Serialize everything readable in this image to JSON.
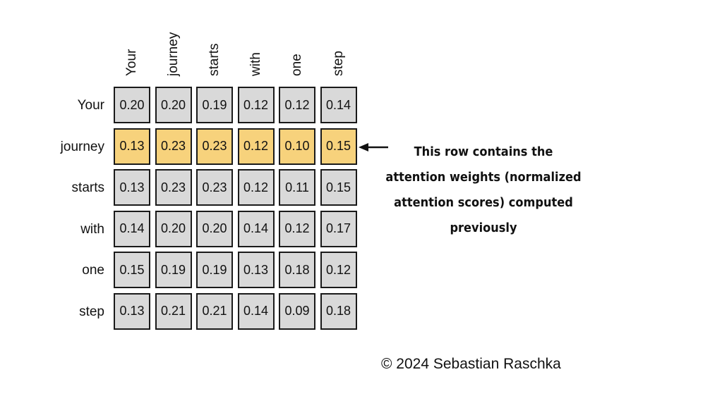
{
  "columns": [
    "Your",
    "journey",
    "starts",
    "with",
    "one",
    "step"
  ],
  "rows": [
    {
      "label": "Your",
      "values": [
        "0.20",
        "0.20",
        "0.19",
        "0.12",
        "0.12",
        "0.14"
      ],
      "highlighted": false
    },
    {
      "label": "journey",
      "values": [
        "0.13",
        "0.23",
        "0.23",
        "0.12",
        "0.10",
        "0.15"
      ],
      "highlighted": true
    },
    {
      "label": "starts",
      "values": [
        "0.13",
        "0.23",
        "0.23",
        "0.12",
        "0.11",
        "0.15"
      ],
      "highlighted": false
    },
    {
      "label": "with",
      "values": [
        "0.14",
        "0.20",
        "0.20",
        "0.14",
        "0.12",
        "0.17"
      ],
      "highlighted": false
    },
    {
      "label": "one",
      "values": [
        "0.15",
        "0.19",
        "0.19",
        "0.13",
        "0.18",
        "0.12"
      ],
      "highlighted": false
    },
    {
      "label": "step",
      "values": [
        "0.13",
        "0.21",
        "0.21",
        "0.14",
        "0.09",
        "0.18"
      ],
      "highlighted": false
    }
  ],
  "annotation": {
    "line1": "This row contains the",
    "line2": "attention weights (normalized",
    "line3": "attention scores) computed",
    "line4": "previously"
  },
  "copyright": "© 2024 Sebastian Raschka",
  "colors": {
    "cell": "#d9d9d9",
    "highlight": "#f7d27c",
    "border": "#1a1a1a"
  }
}
